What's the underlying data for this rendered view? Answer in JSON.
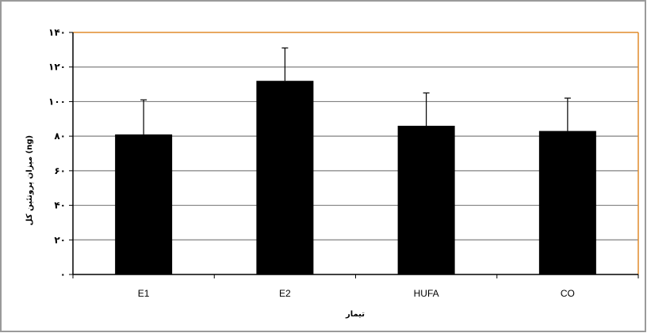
{
  "chart_data": {
    "type": "bar",
    "title": "",
    "xlabel": "تیمار",
    "ylabel": "میزان پروتئین کل (ng)",
    "categories": [
      "E1",
      "E2",
      "HUFA",
      "CO"
    ],
    "values": [
      81,
      112,
      86,
      83
    ],
    "error_plus": [
      20,
      19,
      19,
      19
    ],
    "ylim": [
      0,
      140
    ],
    "yticks": [
      0,
      20,
      40,
      60,
      80,
      100,
      120,
      140
    ],
    "ytick_labels": [
      "۰",
      "۲۰",
      "۴۰",
      "۶۰",
      "۸۰",
      "۱۰۰",
      "۱۲۰",
      "۱۴۰"
    ],
    "grid": true,
    "legend": "none",
    "colors": {
      "bar": "#000000",
      "grid": "#808080",
      "plot_border": "#e08c2c",
      "frame": "#9a9a9a",
      "plot_bg": "#ffffff"
    }
  }
}
